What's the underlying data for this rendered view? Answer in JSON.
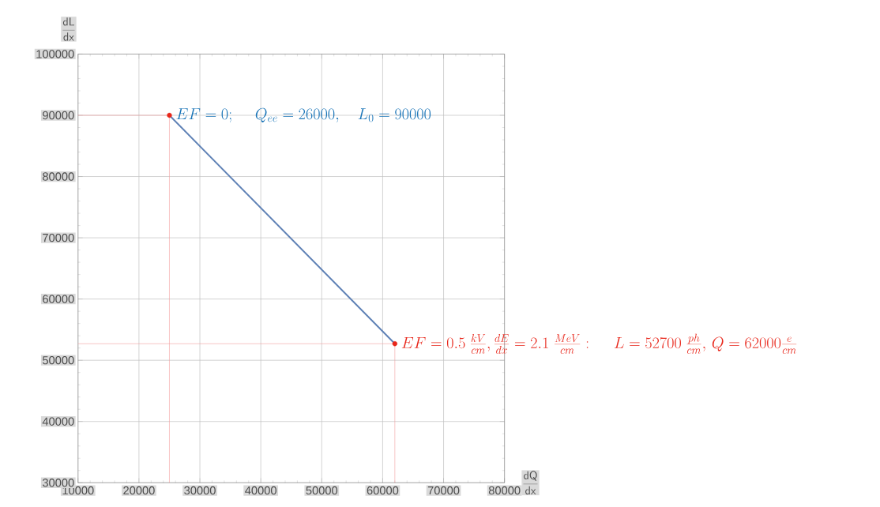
{
  "chart_data": {
    "type": "line",
    "xlabel": "\\frac{\\mathsf{dQ}}{\\mathsf{dx}}",
    "ylabel": "\\frac{\\mathsf{dL}}{\\mathsf{dx}}",
    "xlim": [
      10000,
      80000
    ],
    "ylim": [
      30000,
      100000
    ],
    "xticks": [
      10000,
      20000,
      30000,
      40000,
      50000,
      60000,
      70000,
      80000
    ],
    "yticks": [
      30000,
      40000,
      50000,
      60000,
      70000,
      80000,
      90000,
      100000
    ],
    "grid": true,
    "series": [
      {
        "color": "#f29b9b",
        "marker": "none",
        "x": [
          10000,
          25000,
          25000
        ],
        "values": [
          90000,
          90000,
          30000
        ]
      },
      {
        "color": "#f29b9b",
        "marker": "none",
        "x": [
          10000,
          62000,
          62000
        ],
        "values": [
          52700,
          52700,
          30000
        ]
      },
      {
        "color": "#5e81b5",
        "marker": "none",
        "x": [
          25000,
          62000
        ],
        "values": [
          90000,
          52700
        ]
      },
      {
        "type": "scatter",
        "color": "#e8261a",
        "marker": "circle",
        "x": [
          25000,
          62000
        ],
        "values": [
          90000,
          52700
        ]
      }
    ],
    "annotations": [
      {
        "text": "EF = 0;\\quad\\; Q_{ee} = 26000,\\quad L_0 = 90000",
        "x": 25000,
        "y": 90000
      },
      {
        "text": "EF = 0.5\\ \\frac{kV}{cm},\\frac{dE}{dx} = 2.1\\ \\frac{MeV}{cm}:\\quad\\; L = 52700\\ \\frac{ph}{cm},\\, Q = 62000\\frac{e}{cm}",
        "x": 62000,
        "y": 52700
      }
    ]
  }
}
